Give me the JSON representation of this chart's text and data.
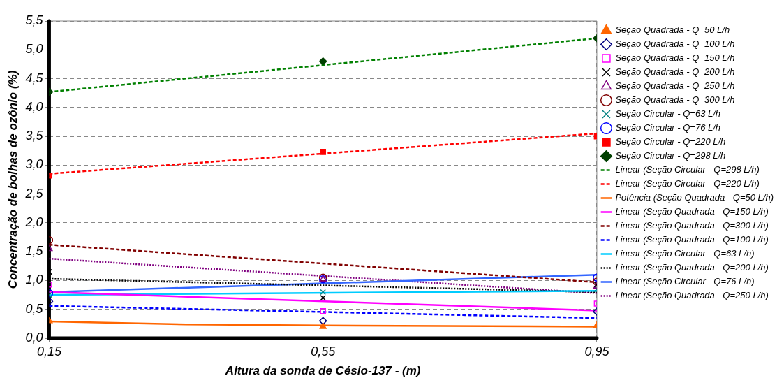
{
  "chart_data": {
    "type": "scatter",
    "xlabel": "Altura da sonda de Césio-137 - (m)",
    "ylabel": "Concentração de bolhas de ozônio (%)",
    "xlim": [
      0.15,
      0.95
    ],
    "xticks": [
      {
        "value": 0.15,
        "label": "0,15"
      },
      {
        "value": 0.55,
        "label": "0,55"
      },
      {
        "value": 0.95,
        "label": "0,95"
      }
    ],
    "ylim": [
      0,
      5.5
    ],
    "yticks": [
      {
        "value": 0,
        "label": "0,0"
      },
      {
        "value": 0.5,
        "label": "0,5"
      },
      {
        "value": 1,
        "label": "1,0"
      },
      {
        "value": 1.5,
        "label": "1,5"
      },
      {
        "value": 2,
        "label": "2,0"
      },
      {
        "value": 2.5,
        "label": "2,5"
      },
      {
        "value": 3,
        "label": "3,0"
      },
      {
        "value": 3.5,
        "label": "3,5"
      },
      {
        "value": 4,
        "label": "4,0"
      },
      {
        "value": 4.5,
        "label": "4,5"
      },
      {
        "value": 5,
        "label": "5,0"
      },
      {
        "value": 5.5,
        "label": "5,5"
      }
    ],
    "grid": true,
    "legend": "right",
    "series": [
      {
        "name": "Seção Quadrada - Q=50 L/h",
        "marker": "triangle",
        "color": "#ff6600",
        "x": [
          0.15,
          0.55,
          0.95
        ],
        "values": [
          0.3,
          0.2,
          0.22
        ]
      },
      {
        "name": "Seção Quadrada - Q=100 L/h",
        "marker": "diamond",
        "color": "#000080",
        "x": [
          0.15,
          0.55,
          0.95
        ],
        "values": [
          0.64,
          0.3,
          0.46
        ]
      },
      {
        "name": "Seção Quadrada - Q=150 L/h",
        "marker": "square",
        "color": "#ff00ff",
        "x": [
          0.15,
          0.55,
          0.95
        ],
        "values": [
          0.93,
          0.47,
          0.6
        ]
      },
      {
        "name": "Seção Quadrada - Q=200 L/h",
        "marker": "cross",
        "color": "#000000",
        "x": [
          0.15,
          0.55,
          0.95
        ],
        "values": [
          1.15,
          0.7,
          0.93
        ]
      },
      {
        "name": "Seção Quadrada - Q=250 L/h",
        "marker": "triangle",
        "color": "#800080",
        "x": [
          0.15,
          0.55,
          0.95
        ],
        "values": [
          1.55,
          1.02,
          0.9
        ]
      },
      {
        "name": "Seção Quadrada - Q=300 L/h",
        "marker": "circle",
        "color": "#800000",
        "x": [
          0.15,
          0.55,
          0.95
        ],
        "values": [
          1.7,
          1.05,
          0.98
        ]
      },
      {
        "name": "Seção Circular - Q=63 L/h",
        "marker": "cross",
        "color": "#008080",
        "x": [
          0.15,
          0.55,
          0.95
        ],
        "values": [
          0.75,
          0.8,
          0.85
        ]
      },
      {
        "name": "Seção Circular - Q=76 L/h",
        "marker": "circle",
        "color": "#0000ff",
        "x": [
          0.15,
          0.55,
          0.95
        ],
        "values": [
          0.78,
          1.02,
          1.05
        ]
      },
      {
        "name": "Seção Circular - Q=220 L/h",
        "marker": "square",
        "color": "#ff0000",
        "x": [
          0.15,
          0.55,
          0.95
        ],
        "values": [
          2.82,
          3.23,
          3.5
        ]
      },
      {
        "name": "Seção Circular - Q=298 L/h",
        "marker": "diamond",
        "color": "#004000",
        "x": [
          0.15,
          0.55,
          0.95
        ],
        "values": [
          4.27,
          4.8,
          5.2
        ]
      },
      {
        "name": "Linear (Seção Circular - Q=298 L/h)",
        "type": "line",
        "line_style": "dashed",
        "marker": "none",
        "color": "#008000",
        "x": [
          0.15,
          0.95
        ],
        "values": [
          4.27,
          5.2
        ]
      },
      {
        "name": "Linear (Seção Circular - Q=220 L/h)",
        "type": "line",
        "line_style": "dashed",
        "marker": "none",
        "color": "#ff0000",
        "x": [
          0.15,
          0.95
        ],
        "values": [
          2.85,
          3.55
        ]
      },
      {
        "name": "Potência (Seção Quadrada - Q=50 L/h)",
        "type": "line",
        "line_style": "solid",
        "marker": "none",
        "color": "#ff6600",
        "x": [
          0.15,
          0.35,
          0.55,
          0.95
        ],
        "values": [
          0.29,
          0.24,
          0.22,
          0.2
        ]
      },
      {
        "name": "Linear (Seção Quadrada - Q=150 L/h)",
        "type": "line",
        "line_style": "solid",
        "marker": "none",
        "color": "#ff00ff",
        "x": [
          0.15,
          0.95
        ],
        "values": [
          0.8,
          0.48
        ]
      },
      {
        "name": "Linear (Seção Quadrada - Q=300 L/h)",
        "type": "line",
        "line_style": "dashed",
        "marker": "none",
        "color": "#800000",
        "x": [
          0.15,
          0.95
        ],
        "values": [
          1.62,
          0.97
        ]
      },
      {
        "name": "Linear (Seção Quadrada - Q=100 L/h)",
        "type": "line",
        "line_style": "dashed",
        "marker": "none",
        "color": "#0000ff",
        "x": [
          0.15,
          0.95
        ],
        "values": [
          0.56,
          0.35
        ]
      },
      {
        "name": "Linear (Seção Circular - Q=63 L/h)",
        "type": "line",
        "line_style": "solid",
        "marker": "none",
        "color": "#00ccff",
        "x": [
          0.15,
          0.95
        ],
        "values": [
          0.75,
          0.82
        ]
      },
      {
        "name": "Linear (Seção Quadrada - Q=200 L/h)",
        "type": "line",
        "line_style": "dotted",
        "marker": "none",
        "color": "#000000",
        "x": [
          0.15,
          0.95
        ],
        "values": [
          1.03,
          0.8
        ]
      },
      {
        "name": "Linear (Seção Circular - Q=76 L/h)",
        "type": "line",
        "line_style": "solid",
        "marker": "none",
        "color": "#3366ff",
        "x": [
          0.15,
          0.95
        ],
        "values": [
          0.8,
          1.1
        ]
      },
      {
        "name": "Linear (Seção Quadrada - Q=250 L/h)",
        "type": "line",
        "line_style": "dotted",
        "marker": "none",
        "color": "#800080",
        "x": [
          0.15,
          0.95
        ],
        "values": [
          1.38,
          0.78
        ]
      }
    ]
  }
}
